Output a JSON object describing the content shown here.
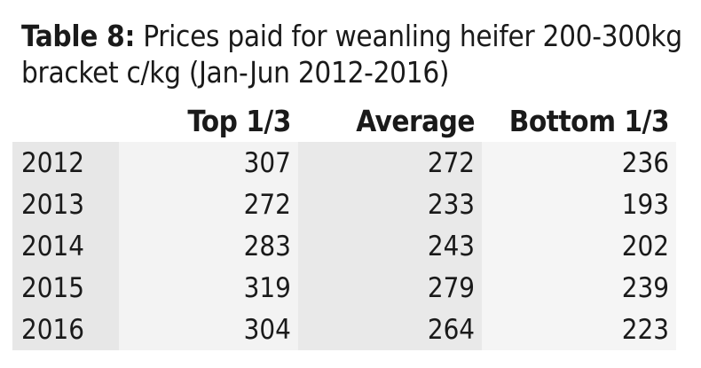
{
  "title": {
    "lead": "Table 8:",
    "text": " Prices paid for weanling heifer 200-300kg bracket c/kg (Jan-Jun 2012-2016)"
  },
  "columns": [
    "",
    "Top 1/3",
    "Average",
    "Bottom 1/3"
  ],
  "rows": [
    {
      "year": "2012",
      "top": "307",
      "average": "272",
      "bottom": "236"
    },
    {
      "year": "2013",
      "top": "272",
      "average": "233",
      "bottom": "193"
    },
    {
      "year": "2014",
      "top": "283",
      "average": "243",
      "bottom": "202"
    },
    {
      "year": "2015",
      "top": "319",
      "average": "279",
      "bottom": "239"
    },
    {
      "year": "2016",
      "top": "304",
      "average": "264",
      "bottom": "223"
    }
  ]
}
